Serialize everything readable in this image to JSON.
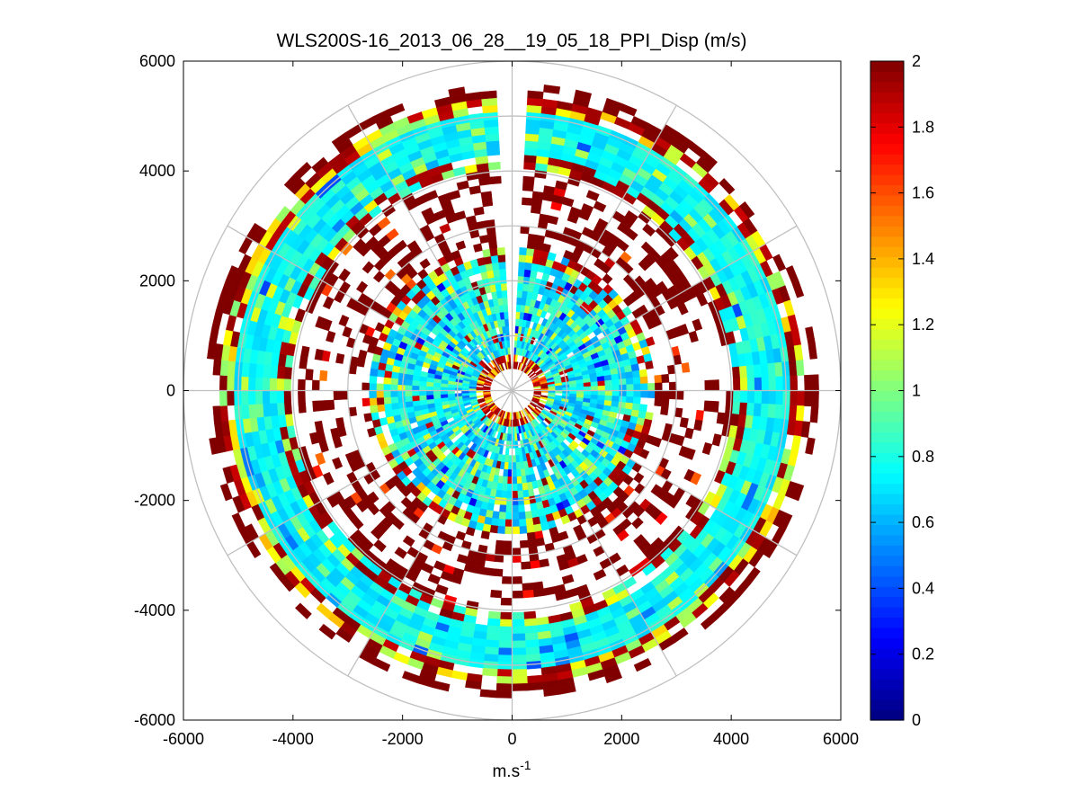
{
  "chart_data": {
    "type": "heatmap",
    "subtype": "polar-ppi-scan",
    "title": "WLS200S-16_2013_06_28__19_05_18_PPI_Disp (m/s)",
    "xlabel": "m.s",
    "xlabel_superscript": "-1",
    "ylabel": "",
    "xlim": [
      -6000,
      6000
    ],
    "ylim": [
      -6000,
      6000
    ],
    "xticks": [
      -6000,
      -4000,
      -2000,
      0,
      2000,
      4000,
      6000
    ],
    "yticks": [
      6000,
      4000,
      2000,
      0,
      -2000,
      -4000,
      -6000
    ],
    "grid": true,
    "polar_grid": {
      "ring_radii": [
        1000,
        2000,
        3000,
        4000,
        5000,
        6000
      ],
      "spoke_angles_deg": [
        0,
        30,
        60,
        90,
        120,
        150,
        180,
        210,
        240,
        270,
        300,
        330
      ]
    },
    "scan": {
      "range_min": 400,
      "range_max": 5600,
      "range_step": 130,
      "azimuth_step_deg": 3,
      "gap_azimuth_deg": [
        -4,
        4
      ]
    },
    "bands": [
      {
        "r_min": 400,
        "r_max": 650,
        "description": "near-range ring",
        "dominant_value": 1.9
      },
      {
        "r_min": 650,
        "r_max": 2300,
        "description": "inner mixed zone",
        "dominant_value": 0.7
      },
      {
        "r_min": 2300,
        "r_max": 2600,
        "description": "transition ring",
        "dominant_value": 1.2
      },
      {
        "r_min": 2600,
        "r_max": 4000,
        "description": "sparse noisy zone",
        "dominant_value": 2.0
      },
      {
        "r_min": 4000,
        "r_max": 5100,
        "description": "outer signal ring",
        "dominant_value": 0.75
      },
      {
        "r_min": 5100,
        "r_max": 5600,
        "description": "outer edge",
        "dominant_value": 2.0
      }
    ],
    "colorbar": {
      "min": 0,
      "max": 2,
      "colormap": "jet",
      "ticks": [
        0,
        0.2,
        0.4,
        0.6,
        0.8,
        1,
        1.2,
        1.4,
        1.6,
        1.8,
        2
      ],
      "tick_labels": [
        "0",
        "0.2",
        "0.4",
        "0.6",
        "0.8",
        "1",
        "1.2",
        "1.4",
        "1.6",
        "1.8",
        "2"
      ]
    }
  }
}
